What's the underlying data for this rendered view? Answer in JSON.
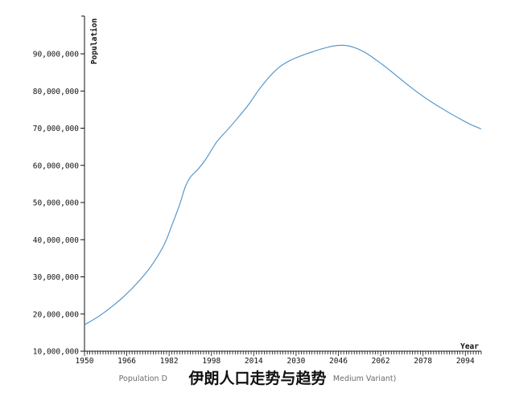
{
  "chart_data": {
    "type": "line",
    "xlabel": "Year",
    "ylabel": "Population",
    "xlim": [
      1950,
      2100
    ],
    "ylim": [
      10000000,
      92500000
    ],
    "x_ticks": [
      1950,
      1966,
      1982,
      1998,
      2014,
      2030,
      2046,
      2062,
      2078,
      2094
    ],
    "y_ticks": [
      10000000,
      20000000,
      30000000,
      40000000,
      50000000,
      60000000,
      70000000,
      80000000,
      90000000
    ],
    "y_tick_labels": [
      "10,000,000",
      "20,000,000",
      "30,000,000",
      "40,000,000",
      "50,000,000",
      "60,000,000",
      "70,000,000",
      "80,000,000",
      "90,000,000"
    ],
    "grid": false,
    "line_color": "#4a90c8",
    "series": [
      {
        "x": [
          1950,
          1955,
          1960,
          1965,
          1970,
          1975,
          1980,
          1983,
          1986,
          1988,
          1990,
          1993,
          1996,
          2000,
          2004,
          2008,
          2012,
          2016,
          2020,
          2024,
          2028,
          2032,
          2036,
          2040,
          2044,
          2048,
          2052,
          2056,
          2060,
          2064,
          2068,
          2072,
          2076,
          2080,
          2084,
          2088,
          2092,
          2096,
          2100
        ],
        "y": [
          17100000,
          19200000,
          21800000,
          24800000,
          28400000,
          32700000,
          38500000,
          43800000,
          49500000,
          54000000,
          56800000,
          59000000,
          61800000,
          66300000,
          69500000,
          72800000,
          76300000,
          80400000,
          83900000,
          86600000,
          88300000,
          89500000,
          90500000,
          91400000,
          92100000,
          92300000,
          91700000,
          90400000,
          88500000,
          86400000,
          84100000,
          81800000,
          79600000,
          77600000,
          75800000,
          74100000,
          72500000,
          71000000,
          69800000
        ]
      }
    ]
  },
  "caption": {
    "text_left": "Population D",
    "text_right": ", Medium Variant)"
  },
  "overlay_title": "伊朗人口走势与趋势"
}
